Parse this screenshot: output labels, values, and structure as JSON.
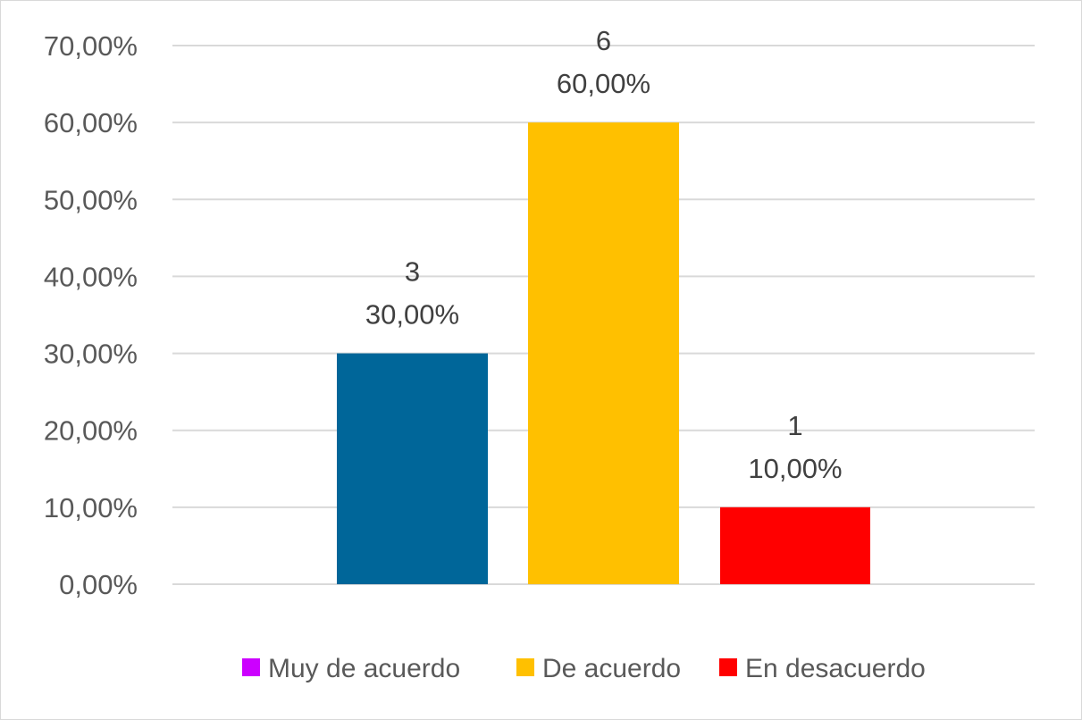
{
  "chart_data": {
    "type": "bar",
    "title": "",
    "xlabel": "",
    "ylabel": "",
    "ylim": [
      0,
      70
    ],
    "y_ticks": [
      0,
      10,
      20,
      30,
      40,
      50,
      60,
      70
    ],
    "y_tick_labels": [
      "0,00%",
      "10,00%",
      "20,00%",
      "30,00%",
      "40,00%",
      "50,00%",
      "60,00%",
      "70,00%"
    ],
    "grid": true,
    "legend_position": "bottom",
    "categories": [
      "Muy de acuerdo",
      "De acuerdo",
      "En desacuerdo"
    ],
    "series": [
      {
        "name": "Muy de acuerdo",
        "color": "#cc00ff",
        "count": null,
        "value": null,
        "count_label": "",
        "percent_label": ""
      },
      {
        "name": "De acuerdo",
        "color": "#ffc000",
        "count": 6,
        "value": 60,
        "count_label": "6",
        "percent_label": "60,00%"
      },
      {
        "name": "En desacuerdo",
        "color": "#ff0000",
        "count": 1,
        "value": 10,
        "count_label": "1",
        "percent_label": "10,00%"
      }
    ],
    "extra_bars": [
      {
        "color": "#006699",
        "count": 3,
        "value": 30,
        "count_label": "3",
        "percent_label": "30,00%"
      }
    ]
  }
}
